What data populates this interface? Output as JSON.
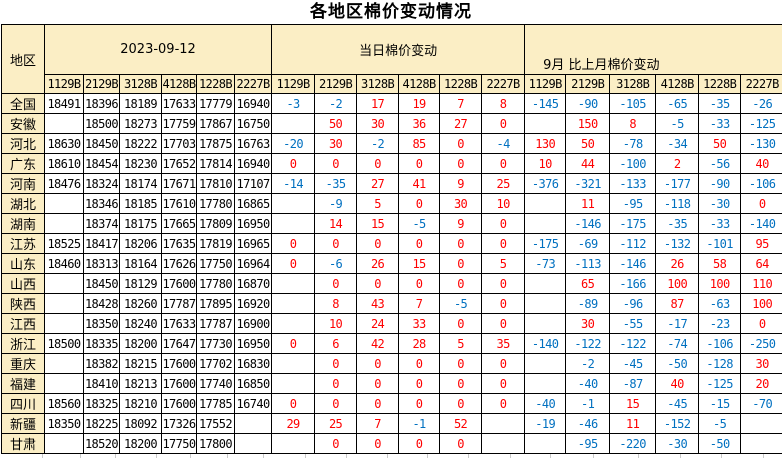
{
  "title": "各地区棉价变动情况",
  "colors": {
    "header_bg": "#FBEEC5",
    "positive_text": "#FF0000",
    "negative_text": "#0070C0",
    "border": "#000000"
  },
  "header": {
    "region_label": "地区",
    "groups": [
      {
        "label": "2023-09-12"
      },
      {
        "label": "当日棉价变动"
      },
      {
        "label": "9月 比上月棉价变动"
      }
    ],
    "subcols": [
      "1129B",
      "2129B",
      "3128B",
      "4128B",
      "1228B",
      "2227B"
    ]
  },
  "rows": [
    {
      "region": "全国",
      "date": [
        "18491",
        "18396",
        "18189",
        "17633",
        "17779",
        "16940"
      ],
      "daily": [
        "-3",
        "-2",
        "17",
        "19",
        "7",
        "8"
      ],
      "month": [
        "-145",
        "-90",
        "-105",
        "-65",
        "-35",
        "-26"
      ]
    },
    {
      "region": "安徽",
      "date": [
        "",
        "18500",
        "18273",
        "17759",
        "17867",
        "16750"
      ],
      "daily": [
        "",
        "50",
        "30",
        "36",
        "27",
        "0"
      ],
      "month": [
        "",
        "150",
        "8",
        "-5",
        "-33",
        "-125"
      ]
    },
    {
      "region": "河北",
      "date": [
        "18630",
        "18450",
        "18222",
        "17703",
        "17875",
        "16763"
      ],
      "daily": [
        "-20",
        "30",
        "-2",
        "85",
        "0",
        "-4"
      ],
      "month": [
        "130",
        "50",
        "-78",
        "-34",
        "50",
        "-130"
      ]
    },
    {
      "region": "广东",
      "date": [
        "18610",
        "18454",
        "18230",
        "17652",
        "17814",
        "16940"
      ],
      "daily": [
        "0",
        "0",
        "0",
        "0",
        "0",
        "0"
      ],
      "month": [
        "10",
        "44",
        "-100",
        "2",
        "-56",
        "40"
      ]
    },
    {
      "region": "河南",
      "date": [
        "18476",
        "18324",
        "18174",
        "17671",
        "17810",
        "17107"
      ],
      "daily": [
        "-14",
        "-35",
        "27",
        "41",
        "9",
        "25"
      ],
      "month": [
        "-376",
        "-321",
        "-133",
        "-177",
        "-90",
        "-106"
      ]
    },
    {
      "region": "湖北",
      "date": [
        "",
        "18346",
        "18185",
        "17610",
        "17780",
        "16865"
      ],
      "daily": [
        "",
        "-9",
        "5",
        "0",
        "30",
        "10"
      ],
      "month": [
        "",
        "11",
        "-95",
        "-118",
        "-30",
        "0"
      ]
    },
    {
      "region": "湖南",
      "date": [
        "",
        "18374",
        "18175",
        "17665",
        "17809",
        "16950"
      ],
      "daily": [
        "",
        "14",
        "15",
        "-5",
        "9",
        "0"
      ],
      "month": [
        "",
        "-146",
        "-175",
        "-35",
        "-33",
        "-140"
      ]
    },
    {
      "region": "江苏",
      "date": [
        "18525",
        "18417",
        "18206",
        "17635",
        "17819",
        "16965"
      ],
      "daily": [
        "0",
        "0",
        "0",
        "0",
        "0",
        "0"
      ],
      "month": [
        "-175",
        "-69",
        "-112",
        "-132",
        "-101",
        "95"
      ]
    },
    {
      "region": "山东",
      "date": [
        "18460",
        "18313",
        "18164",
        "17626",
        "17750",
        "16964"
      ],
      "daily": [
        "0",
        "-6",
        "26",
        "15",
        "0",
        "5"
      ],
      "month": [
        "-73",
        "-113",
        "-146",
        "26",
        "58",
        "64"
      ]
    },
    {
      "region": "山西",
      "date": [
        "",
        "18450",
        "18129",
        "17600",
        "17780",
        "16870"
      ],
      "daily": [
        "",
        "0",
        "0",
        "0",
        "0",
        "0"
      ],
      "month": [
        "",
        "65",
        "-166",
        "100",
        "100",
        "110"
      ]
    },
    {
      "region": "陕西",
      "date": [
        "",
        "18428",
        "18260",
        "17787",
        "17895",
        "16920"
      ],
      "daily": [
        "",
        "8",
        "43",
        "7",
        "-5",
        "0"
      ],
      "month": [
        "",
        "-89",
        "-96",
        "87",
        "-63",
        "100"
      ]
    },
    {
      "region": "江西",
      "date": [
        "",
        "18350",
        "18240",
        "17633",
        "17787",
        "16900"
      ],
      "daily": [
        "",
        "10",
        "24",
        "33",
        "0",
        "0"
      ],
      "month": [
        "",
        "30",
        "-55",
        "-17",
        "-23",
        "0"
      ]
    },
    {
      "region": "浙江",
      "date": [
        "18500",
        "18335",
        "18200",
        "17647",
        "17730",
        "16950"
      ],
      "daily": [
        "0",
        "6",
        "42",
        "28",
        "5",
        "35"
      ],
      "month": [
        "-140",
        "-122",
        "-122",
        "-74",
        "-106",
        "-250"
      ]
    },
    {
      "region": "重庆",
      "date": [
        "",
        "18382",
        "18215",
        "17600",
        "17702",
        "16830"
      ],
      "daily": [
        "",
        "0",
        "0",
        "0",
        "0",
        "0"
      ],
      "month": [
        "",
        "-2",
        "-45",
        "-50",
        "-128",
        "30"
      ]
    },
    {
      "region": "福建",
      "date": [
        "",
        "18410",
        "18213",
        "17600",
        "17740",
        "16850"
      ],
      "daily": [
        "",
        "0",
        "0",
        "0",
        "0",
        "0"
      ],
      "month": [
        "",
        "-40",
        "-87",
        "40",
        "-125",
        "20"
      ]
    },
    {
      "region": "四川",
      "date": [
        "18560",
        "18325",
        "18210",
        "17600",
        "17785",
        "16740"
      ],
      "daily": [
        "0",
        "0",
        "0",
        "0",
        "0",
        "0"
      ],
      "month": [
        "-40",
        "-1",
        "15",
        "-45",
        "-15",
        "-70"
      ]
    },
    {
      "region": "新疆",
      "date": [
        "18350",
        "18225",
        "18092",
        "17326",
        "17552",
        ""
      ],
      "daily": [
        "29",
        "25",
        "7",
        "-1",
        "52",
        ""
      ],
      "month": [
        "-19",
        "-46",
        "11",
        "-152",
        "-5",
        ""
      ]
    },
    {
      "region": "甘肃",
      "date": [
        "",
        "18520",
        "18200",
        "17750",
        "17800",
        ""
      ],
      "daily": [
        "",
        "0",
        "0",
        "0",
        "0",
        ""
      ],
      "month": [
        "",
        "-95",
        "-220",
        "-30",
        "-50",
        ""
      ]
    }
  ]
}
